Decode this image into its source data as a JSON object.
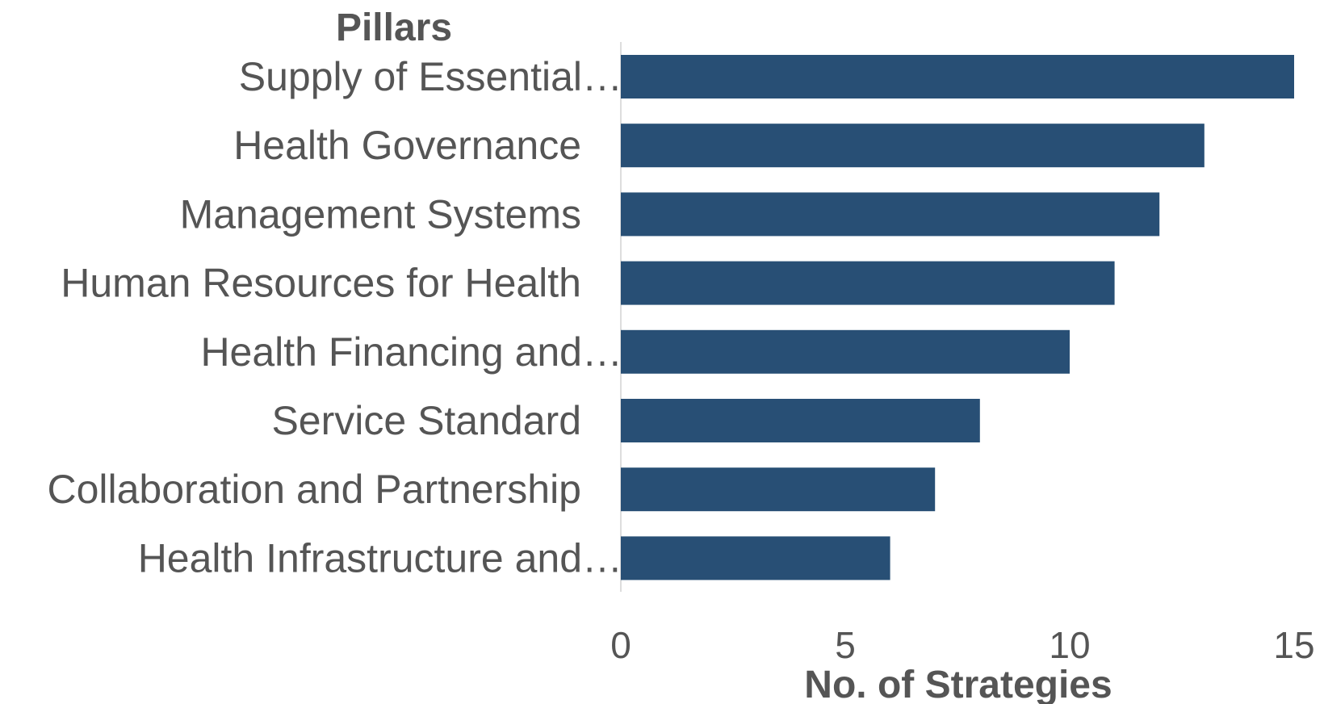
{
  "chart_data": {
    "type": "bar",
    "orientation": "horizontal",
    "ylabel": "Pillars",
    "xlabel": "No. of Strategies",
    "categories": [
      "Supply of Essential…",
      "Health Governance",
      "Management Systems",
      "Human Resources for Health",
      "Health Financing and…",
      "Service Standard",
      "Collaboration and Partnership",
      "Health Infrastructure and…"
    ],
    "values": [
      15,
      13,
      12,
      11,
      10,
      8,
      7,
      6
    ],
    "xlim": [
      0,
      15
    ],
    "xticks": [
      "0",
      "5",
      "10",
      "15"
    ],
    "grid": false,
    "bar_color": "#284f75"
  }
}
